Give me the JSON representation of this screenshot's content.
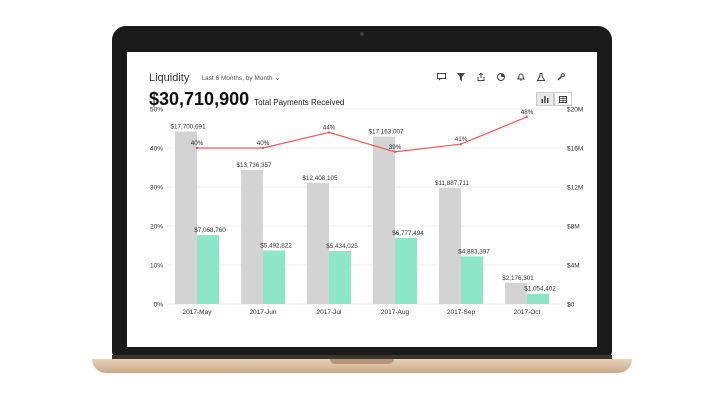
{
  "header": {
    "title": "Liquidity",
    "period_label": "Last 6 Months, by Month",
    "chevron": "⌄",
    "toolbar_icons": [
      "comment-icon",
      "filter-icon",
      "share-icon",
      "pie-icon",
      "bell-icon",
      "flask-icon",
      "wrench-icon"
    ]
  },
  "summary": {
    "amount": "$30,710,900",
    "label": "Total Payments Received"
  },
  "view_toggle": {
    "active": "chart-view",
    "icons": [
      "bar-chart-icon",
      "table-icon"
    ]
  },
  "colors": {
    "gray_bar": "#d3d3d3",
    "green_bar": "#8de6c7",
    "line": "#f05a5a",
    "grid": "#e6e6e6",
    "text": "#333333"
  },
  "chart_data": {
    "type": "bar",
    "categories": [
      "2017-May",
      "2017-Jun",
      "2017-Jul",
      "2017-Aug",
      "2017-Sep",
      "2017-Oct"
    ],
    "series": [
      {
        "values": [
          17700691,
          13736357,
          12408105,
          17163007,
          11887711,
          2176301
        ],
        "labels": [
          "$17,700,691",
          "$13,736,357",
          "$12,408,105",
          "$17,163,007",
          "$11,887,711",
          "$2,176,301"
        ]
      },
      {
        "values": [
          7068760,
          5492822,
          5434025,
          6777494,
          4883397,
          1054402
        ],
        "labels": [
          "$7,068,760",
          "$5,492,822",
          "$5,434,025",
          "$6,777,494",
          "$4,883,397",
          "$1,054,402"
        ]
      },
      {
        "type": "line",
        "values": [
          40,
          40,
          44,
          39,
          41,
          48
        ],
        "labels": [
          "40%",
          "40%",
          "44%",
          "39%",
          "41%",
          "48%"
        ]
      }
    ],
    "y_left": {
      "ticks": [
        "0%",
        "10%",
        "20%",
        "30%",
        "40%",
        "50%"
      ],
      "range": [
        0,
        50
      ]
    },
    "y_right": {
      "ticks": [
        "$0",
        "$4M",
        "$8M",
        "$12M",
        "$16M",
        "$20M"
      ],
      "range": [
        0,
        20000000
      ]
    },
    "grid": true,
    "legend": "none"
  }
}
